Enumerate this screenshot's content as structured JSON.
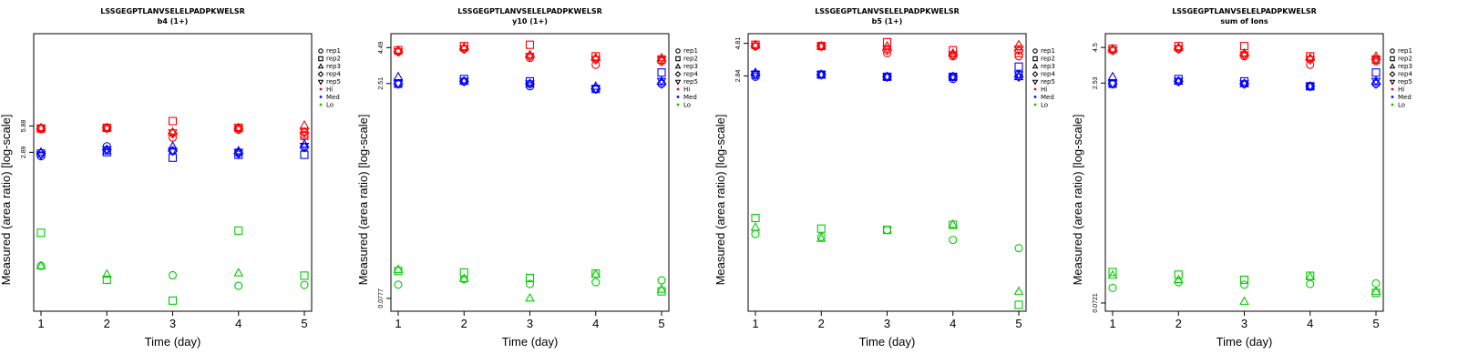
{
  "chart_data": [
    {
      "type": "scatter",
      "title": "LSSGEGPTLANVSELELPADPKWELSR",
      "subtitle": "b4 (1+)",
      "xlabel": "Time (day)",
      "ylabel": "Measured (area ratio) [log-scale]",
      "x_ticks": [
        "1",
        "2",
        "3",
        "4",
        "5"
      ],
      "y_ticks": [
        "5.88",
        "2.89"
      ],
      "ylim_log": [
        -1.4,
        1.85
      ],
      "groups": [
        {
          "name": "Hi",
          "color": "#ff0000",
          "series": [
            {
              "rep": "rep1",
              "values": [
                5.4,
                5.5,
                4.3,
                5.3,
                4.6
              ]
            },
            {
              "rep": "rep2",
              "values": [
                5.5,
                5.6,
                6.7,
                5.6,
                4.5
              ]
            },
            {
              "rep": "rep3",
              "values": [
                5.6,
                5.6,
                5.0,
                5.6,
                6.0
              ]
            },
            {
              "rep": "rep4",
              "values": [
                5.5,
                5.6,
                4.8,
                5.5,
                4.9
              ]
            },
            {
              "rep": "rep5",
              "values": [
                5.5,
                5.5,
                4.9,
                5.5,
                5.0
              ]
            }
          ]
        },
        {
          "name": "Med",
          "color": "#0000ff",
          "series": [
            {
              "rep": "rep1",
              "values": [
                2.6,
                3.4,
                3.0,
                2.9,
                3.3
              ]
            },
            {
              "rep": "rep2",
              "values": [
                2.8,
                2.9,
                2.5,
                2.7,
                2.7
              ]
            },
            {
              "rep": "rep3",
              "values": [
                2.9,
                3.0,
                3.4,
                3.0,
                3.6
              ]
            },
            {
              "rep": "rep4",
              "values": [
                2.8,
                3.1,
                3.0,
                2.8,
                3.3
              ]
            },
            {
              "rep": "rep5",
              "values": [
                2.7,
                3.1,
                3.0,
                2.9,
                3.4
              ]
            }
          ]
        },
        {
          "name": "Lo",
          "color": "#00cc00",
          "series": [
            {
              "rep": "rep1",
              "values": [
                0.135,
                null,
                0.105,
                0.079,
                0.081
              ]
            },
            {
              "rep": "rep2",
              "values": [
                0.33,
                0.093,
                0.053,
                0.35,
                0.104
              ]
            },
            {
              "rep": "rep3",
              "values": [
                0.135,
                0.108,
                null,
                0.112,
                null
              ]
            }
          ]
        }
      ]
    },
    {
      "type": "scatter",
      "title": "LSSGEGPTLANVSELELPADPKWELSR",
      "subtitle": "y10 (1+)",
      "xlabel": "Time (day)",
      "ylabel": "Measured (area ratio) [log-scale]",
      "x_ticks": [
        "1",
        "2",
        "3",
        "4",
        "5"
      ],
      "y_ticks": [
        "4.49",
        "2.51",
        "0.0777"
      ],
      "ylim_log": [
        -1.2,
        0.75
      ],
      "groups": [
        {
          "name": "Hi",
          "color": "#ff0000",
          "series": [
            {
              "rep": "rep1",
              "values": [
                4.2,
                4.4,
                3.8,
                3.4,
                3.6
              ]
            },
            {
              "rep": "rep2",
              "values": [
                4.3,
                4.6,
                4.7,
                3.9,
                3.7
              ]
            },
            {
              "rep": "rep3",
              "values": [
                4.3,
                4.5,
                4.0,
                3.8,
                3.8
              ]
            },
            {
              "rep": "rep4",
              "values": [
                4.2,
                4.4,
                3.9,
                3.7,
                3.6
              ]
            },
            {
              "rep": "rep5",
              "values": [
                4.2,
                4.4,
                3.9,
                3.7,
                3.7
              ]
            }
          ]
        },
        {
          "name": "Med",
          "color": "#0000ff",
          "series": [
            {
              "rep": "rep1",
              "values": [
                2.5,
                2.6,
                2.4,
                2.3,
                2.5
              ]
            },
            {
              "rep": "rep2",
              "values": [
                2.5,
                2.7,
                2.6,
                2.3,
                3.0
              ]
            },
            {
              "rep": "rep3",
              "values": [
                2.8,
                2.6,
                2.5,
                2.4,
                2.6
              ]
            },
            {
              "rep": "rep4",
              "values": [
                2.5,
                2.6,
                2.5,
                2.3,
                2.5
              ]
            },
            {
              "rep": "rep5",
              "values": [
                2.5,
                2.6,
                2.5,
                2.3,
                2.6
              ]
            }
          ]
        },
        {
          "name": "Lo",
          "color": "#00cc00",
          "series": [
            {
              "rep": "rep1",
              "values": [
                0.097,
                0.106,
                0.098,
                0.101,
                0.104
              ]
            },
            {
              "rep": "rep2",
              "values": [
                0.121,
                0.118,
                0.108,
                0.116,
                0.087
              ]
            },
            {
              "rep": "rep3",
              "values": [
                0.124,
                0.107,
                0.078,
                0.115,
                0.09
              ]
            }
          ]
        }
      ]
    },
    {
      "type": "scatter",
      "title": "LSSGEGPTLANVSELELPADPKWELSR",
      "subtitle": "b5 (1+)",
      "xlabel": "Time (day)",
      "ylabel": "Measured (area ratio) [log-scale]",
      "x_ticks": [
        "1",
        "2",
        "3",
        "4",
        "5"
      ],
      "y_ticks": [
        "4.81",
        "2.84"
      ],
      "ylim_log": [
        -1.2,
        0.75
      ],
      "groups": [
        {
          "name": "Hi",
          "color": "#ff0000",
          "series": [
            {
              "rep": "rep1",
              "values": [
                4.6,
                4.6,
                4.1,
                3.9,
                3.9
              ]
            },
            {
              "rep": "rep2",
              "values": [
                4.7,
                4.6,
                4.9,
                4.3,
                4.1
              ]
            },
            {
              "rep": "rep3",
              "values": [
                4.7,
                4.6,
                4.6,
                4.1,
                4.7
              ]
            },
            {
              "rep": "rep4",
              "values": [
                4.6,
                4.6,
                4.3,
                4.0,
                4.3
              ]
            },
            {
              "rep": "rep5",
              "values": [
                4.6,
                4.6,
                4.4,
                4.0,
                4.4
              ]
            }
          ]
        },
        {
          "name": "Med",
          "color": "#0000ff",
          "series": [
            {
              "rep": "rep1",
              "values": [
                2.8,
                2.9,
                2.8,
                2.7,
                2.9
              ]
            },
            {
              "rep": "rep2",
              "values": [
                2.9,
                2.9,
                2.8,
                2.8,
                3.3
              ]
            },
            {
              "rep": "rep3",
              "values": [
                3.0,
                2.9,
                2.8,
                2.8,
                2.8
              ]
            },
            {
              "rep": "rep4",
              "values": [
                2.9,
                2.9,
                2.8,
                2.8,
                2.8
              ]
            },
            {
              "rep": "rep5",
              "values": [
                2.9,
                2.9,
                2.8,
                2.8,
                2.9
              ]
            }
          ]
        },
        {
          "name": "Lo",
          "color": "#00cc00",
          "series": [
            {
              "rep": "rep1",
              "values": [
                0.22,
                0.21,
                0.235,
                0.2,
                0.175
              ]
            },
            {
              "rep": "rep2",
              "values": [
                0.285,
                0.24,
                0.235,
                0.255,
                0.07
              ]
            },
            {
              "rep": "rep3",
              "values": [
                0.245,
                0.205,
                null,
                0.257,
                0.087
              ]
            }
          ]
        }
      ]
    },
    {
      "type": "scatter",
      "title": "LSSGEGPTLANVSELELPADPKWELSR",
      "subtitle": "sum of Ions",
      "xlabel": "Time (day)",
      "ylabel": "Measured (area ratio) [log-scale]",
      "x_ticks": [
        "1",
        "2",
        "3",
        "4",
        "5"
      ],
      "y_ticks": [
        "4.5",
        "2.53",
        "0.0721"
      ],
      "ylim_log": [
        -1.2,
        0.75
      ],
      "groups": [
        {
          "name": "Hi",
          "color": "#ff0000",
          "series": [
            {
              "rep": "rep1",
              "values": [
                4.3,
                4.4,
                3.9,
                3.4,
                3.6
              ]
            },
            {
              "rep": "rep2",
              "values": [
                4.4,
                4.6,
                4.6,
                3.9,
                3.7
              ]
            },
            {
              "rep": "rep3",
              "values": [
                4.4,
                4.5,
                4.1,
                3.8,
                3.9
              ]
            },
            {
              "rep": "rep4",
              "values": [
                4.3,
                4.4,
                4.0,
                3.7,
                3.7
              ]
            },
            {
              "rep": "rep5",
              "values": [
                4.3,
                4.4,
                4.0,
                3.7,
                3.7
              ]
            }
          ]
        },
        {
          "name": "Med",
          "color": "#0000ff",
          "series": [
            {
              "rep": "rep1",
              "values": [
                2.5,
                2.6,
                2.5,
                2.4,
                2.5
              ]
            },
            {
              "rep": "rep2",
              "values": [
                2.5,
                2.7,
                2.6,
                2.4,
                3.0
              ]
            },
            {
              "rep": "rep3",
              "values": [
                2.8,
                2.6,
                2.5,
                2.4,
                2.6
              ]
            },
            {
              "rep": "rep4",
              "values": [
                2.5,
                2.6,
                2.5,
                2.4,
                2.5
              ]
            },
            {
              "rep": "rep5",
              "values": [
                2.5,
                2.6,
                2.5,
                2.4,
                2.6
              ]
            }
          ]
        },
        {
          "name": "Lo",
          "color": "#00cc00",
          "series": [
            {
              "rep": "rep1",
              "values": [
                0.092,
                0.101,
                0.097,
                0.098,
                0.099
              ]
            },
            {
              "rep": "rep2",
              "values": [
                0.119,
                0.114,
                0.105,
                0.112,
                0.085
              ]
            },
            {
              "rep": "rep3",
              "values": [
                0.113,
                0.105,
                0.074,
                0.11,
                0.087
              ]
            }
          ]
        }
      ]
    }
  ],
  "legend": {
    "reps": [
      {
        "label": "rep1",
        "shape": "circle"
      },
      {
        "label": "rep2",
        "shape": "square"
      },
      {
        "label": "rep3",
        "shape": "triangle-up"
      },
      {
        "label": "rep4",
        "shape": "diamond"
      },
      {
        "label": "rep5",
        "shape": "triangle-down"
      }
    ],
    "groups": [
      {
        "label": "Hi",
        "color": "#ff0000"
      },
      {
        "label": "Med",
        "color": "#0000ff"
      },
      {
        "label": "Lo",
        "color": "#00cc00"
      }
    ]
  }
}
